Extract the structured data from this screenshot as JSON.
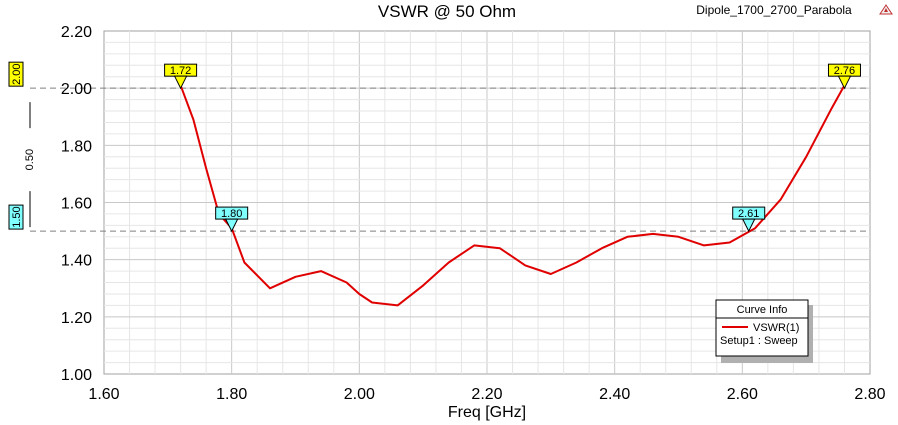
{
  "chart_data": {
    "type": "line",
    "title": "VSWR @ 50 Ohm",
    "design_name": "Dipole_1700_2700_Parabola",
    "xlabel": "Freq [GHz]",
    "ylabel": "",
    "xlim": [
      1.6,
      2.8
    ],
    "ylim": [
      1.0,
      2.2
    ],
    "x_ticks": [
      "1.60",
      "1.80",
      "2.00",
      "2.20",
      "2.40",
      "2.60",
      "2.80"
    ],
    "y_ticks": [
      "1.00",
      "1.20",
      "1.40",
      "1.60",
      "1.80",
      "2.00",
      "2.20"
    ],
    "grid": true,
    "series": [
      {
        "name": "VSWR(1)",
        "color": "#e00000",
        "x": [
          1.72,
          1.74,
          1.76,
          1.78,
          1.8,
          1.82,
          1.86,
          1.9,
          1.94,
          1.98,
          2.0,
          2.02,
          2.06,
          2.1,
          2.14,
          2.18,
          2.22,
          2.26,
          2.3,
          2.34,
          2.38,
          2.42,
          2.46,
          2.5,
          2.54,
          2.58,
          2.62,
          2.66,
          2.7,
          2.74,
          2.76
        ],
        "y": [
          2.01,
          1.89,
          1.72,
          1.56,
          1.51,
          1.39,
          1.3,
          1.34,
          1.36,
          1.32,
          1.28,
          1.25,
          1.24,
          1.31,
          1.39,
          1.45,
          1.44,
          1.38,
          1.35,
          1.39,
          1.44,
          1.48,
          1.49,
          1.48,
          1.45,
          1.46,
          1.51,
          1.61,
          1.76,
          1.93,
          2.01
        ]
      }
    ],
    "hlines": [
      {
        "y": 2.0,
        "label": "2.00",
        "color": "#ffff00"
      },
      {
        "y": 1.5,
        "label": "1.50",
        "color": "#80ffff"
      }
    ],
    "delta_label": "0.50",
    "markers": [
      {
        "x": 1.72,
        "y": 2.0,
        "label": "1.72",
        "color": "#ffff00"
      },
      {
        "x": 1.8,
        "y": 1.5,
        "label": "1.80",
        "color": "#80ffff"
      },
      {
        "x": 2.61,
        "y": 1.5,
        "label": "2.61",
        "color": "#80ffff"
      },
      {
        "x": 2.76,
        "y": 2.0,
        "label": "2.76",
        "color": "#ffff00"
      }
    ],
    "legend": {
      "title": "Curve Info",
      "entry": "VSWR(1)",
      "sub": "Setup1 : Sweep",
      "placement": "bottom-right"
    }
  }
}
